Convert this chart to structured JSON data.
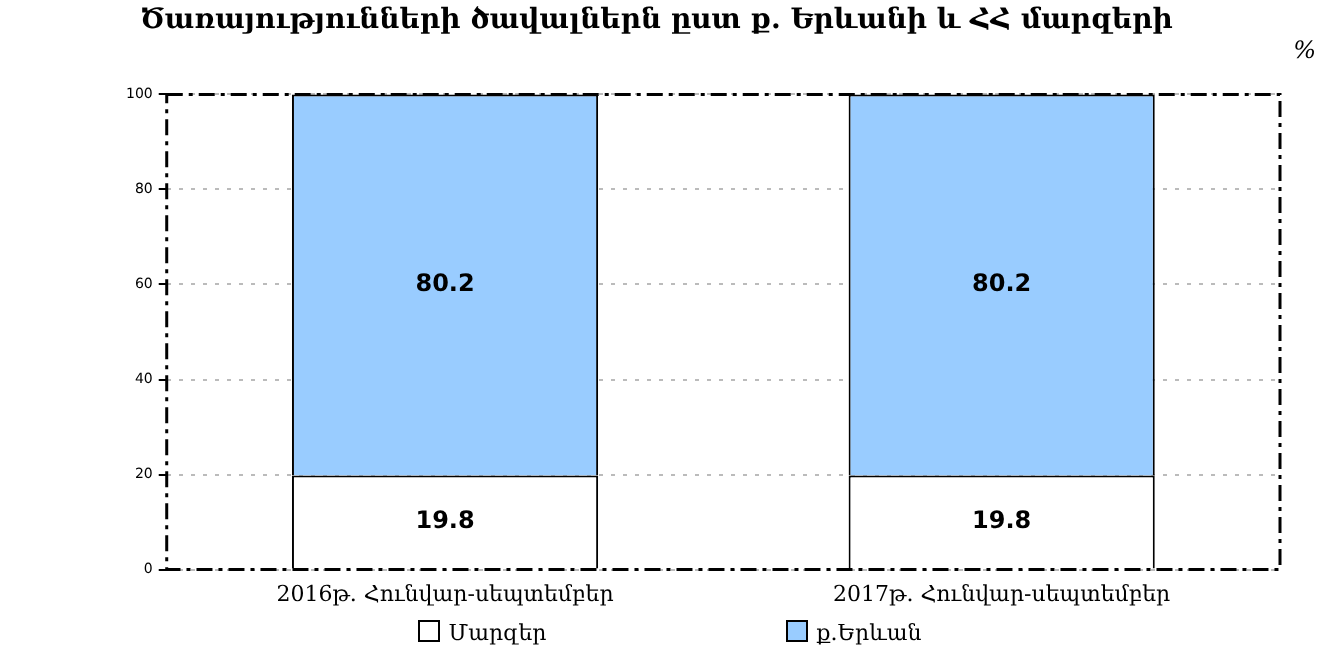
{
  "chart_data": {
    "type": "bar",
    "title": "Ծառայությունների ծավալներն ըստ ք. Երևանի և ՀՀ մարզերի",
    "ylabel": "%",
    "categories": [
      "2016թ. Հունվար-սեպտեմբեր",
      "2017թ. Հունվար-սեպտեմբեր"
    ],
    "stacked": true,
    "series": [
      {
        "name": "Մարզեր",
        "color": "#ffffff",
        "values": [
          19.8,
          19.8
        ]
      },
      {
        "name": "ք.Երևան",
        "color": "#99ccff",
        "values": [
          80.2,
          80.2
        ]
      }
    ],
    "ylim": [
      0,
      100
    ],
    "yticks": [
      0,
      20,
      40,
      60,
      80,
      100
    ],
    "grid": "y",
    "legend": "bottom",
    "data_labels": true
  }
}
